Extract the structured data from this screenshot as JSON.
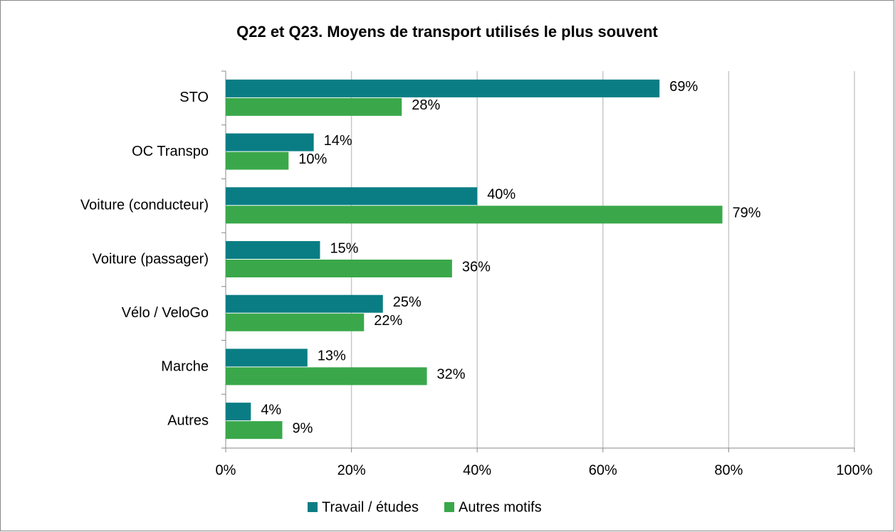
{
  "chart_data": {
    "type": "bar",
    "orientation": "horizontal",
    "title": "Q22 et Q23. Moyens de transport utilisés le plus souvent",
    "categories": [
      "STO",
      "OC Transpo",
      "Voiture (conducteur)",
      "Voiture (passager)",
      "Vélo / VeloGo",
      "Marche",
      "Autres"
    ],
    "series": [
      {
        "name": "Travail / études",
        "color": "#0a7d84",
        "values": [
          69,
          14,
          40,
          15,
          25,
          13,
          4
        ],
        "value_labels": [
          "69%",
          "14%",
          "40%",
          "15%",
          "25%",
          "13%",
          "4%"
        ]
      },
      {
        "name": "Autres motifs",
        "color": "#3aa84a",
        "values": [
          28,
          10,
          79,
          36,
          22,
          32,
          9
        ],
        "value_labels": [
          "28%",
          "10%",
          "79%",
          "36%",
          "22%",
          "32%",
          "9%"
        ]
      }
    ],
    "xlim": [
      0,
      100
    ],
    "xticks": [
      {
        "value": 0,
        "label": "0%"
      },
      {
        "value": 20,
        "label": "20%"
      },
      {
        "value": 40,
        "label": "40%"
      },
      {
        "value": 60,
        "label": "60%"
      },
      {
        "value": 80,
        "label": "80%"
      },
      {
        "value": 100,
        "label": "100%"
      }
    ],
    "grid": true,
    "legend": "bottom"
  }
}
